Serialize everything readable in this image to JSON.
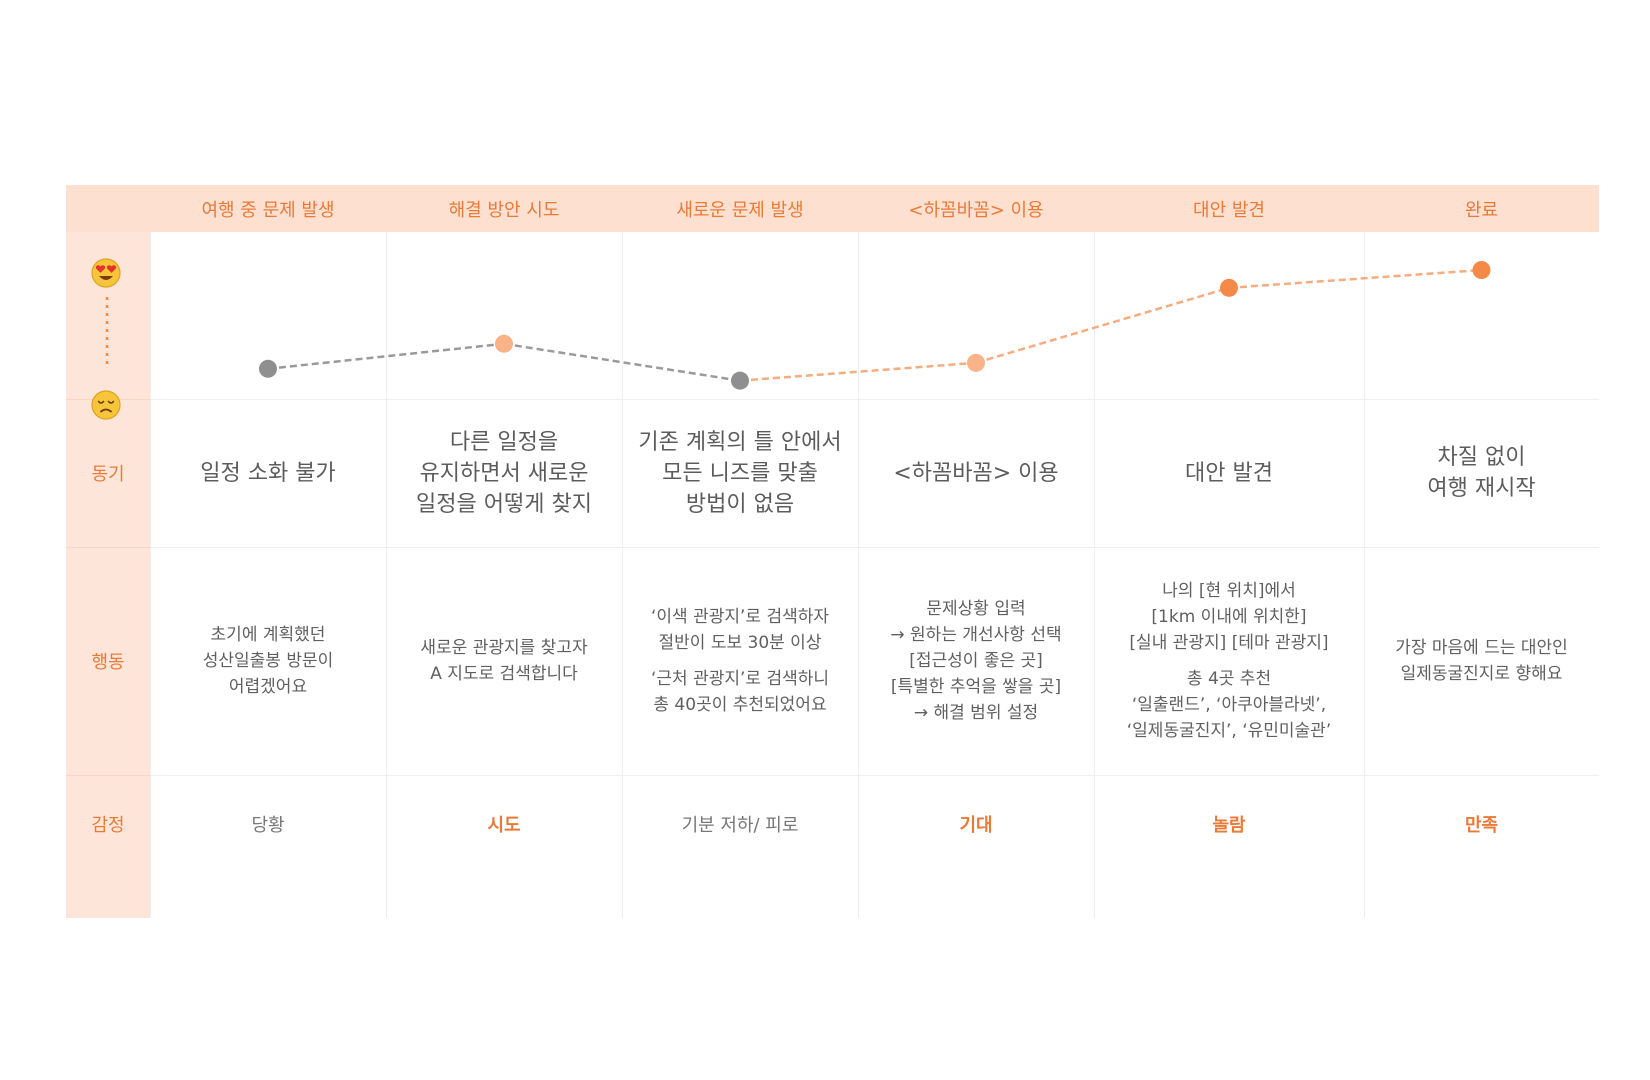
{
  "stages": [
    "여행 중 문제 발생",
    "해결 방안 시도",
    "새로운 문제 발생",
    "<하꼼바꼼> 이용",
    "대안 발견",
    "완료"
  ],
  "row_labels": {
    "motive": "동기",
    "action": "행동",
    "emotion": "감정"
  },
  "emotion_scale": {
    "top": "love-eyes-face-icon",
    "bottom": "sad-face-icon"
  },
  "motives": [
    "일정 소화 불가",
    "다른 일정을\n유지하면서 새로운\n일정을 어떻게 찾지",
    "기존 계획의 틀 안에서\n모든 니즈를 맞출\n방법이 없음",
    "<하꼼바꼼> 이용",
    "대안 발견",
    "차질 없이\n여행 재시작"
  ],
  "actions": [
    [
      "초기에 계획했던\n성산일출봉 방문이\n어렵겠어요"
    ],
    [
      "새로운 관광지를 찾고자\nA 지도로 검색합니다"
    ],
    [
      "‘이색 관광지’로 검색하자\n절반이 도보 30분 이상",
      "‘근처 관광지’로 검색하니\n총 40곳이 추천되었어요"
    ],
    [
      "문제상황 입력\n→ 원하는 개선사항 선택\n[접근성이 좋은 곳]\n[특별한 추억을 쌓을 곳]\n→ 해결 범위 설정"
    ],
    [
      "나의 [현 위치]에서\n[1km 이내에 위치한]\n[실내 관광지] [테마 관광지]",
      "총 4곳 추천\n‘일출랜드’, ‘아쿠아블라넷’,\n‘일제동굴진지’, ‘유민미술관’"
    ],
    [
      "가장 마음에 드는 대안인\n일제동굴진지로 향해요"
    ]
  ],
  "emotions": [
    {
      "label": "당황",
      "highlight": false
    },
    {
      "label": "시도",
      "highlight": true
    },
    {
      "label": "기분 저하/ 피로",
      "highlight": false
    },
    {
      "label": "기대",
      "highlight": true
    },
    {
      "label": "놀람",
      "highlight": true
    },
    {
      "label": "만족",
      "highlight": true
    }
  ],
  "chart_data": {
    "type": "line",
    "categories": [
      "여행 중 문제 발생",
      "해결 방안 시도",
      "새로운 문제 발생",
      "<하꼼바꼼> 이용",
      "대안 발견",
      "완료"
    ],
    "values": [
      0.17,
      0.38,
      0.07,
      0.22,
      0.85,
      1.0
    ],
    "point_colors": [
      "#8f8f8f",
      "#f9b388",
      "#8f8f8f",
      "#f9b388",
      "#f58a48",
      "#f58a48"
    ],
    "segment_colors": [
      "#9a9a9a",
      "#9a9a9a",
      "#f6ac7e",
      "#f6ac7e",
      "#f6ac7e"
    ],
    "ylim": [
      0,
      1
    ]
  }
}
